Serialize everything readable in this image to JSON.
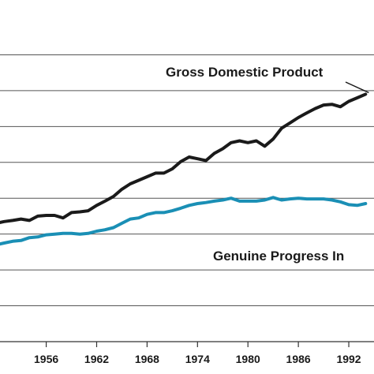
{
  "chart_data": {
    "type": "line",
    "title": "",
    "xlabel": "",
    "ylabel": "",
    "xlim": [
      1950.5,
      1995
    ],
    "ylim": [
      0,
      9
    ],
    "grid": true,
    "x_ticks": [
      {
        "value": 1956,
        "label": "1956"
      },
      {
        "value": 1962,
        "label": "1962"
      },
      {
        "value": 1968,
        "label": "1968"
      },
      {
        "value": 1974,
        "label": "1974"
      },
      {
        "value": 1980,
        "label": "1980"
      },
      {
        "value": 1986,
        "label": "1986"
      },
      {
        "value": 1992,
        "label": "1992"
      }
    ],
    "gridlines_y": [
      1,
      2,
      3,
      4,
      5,
      6,
      7,
      8
    ],
    "series": [
      {
        "name": "Gross Domestic Product",
        "color": "#1a1a1a",
        "x": [
          1950,
          1951,
          1952,
          1953,
          1954,
          1955,
          1956,
          1957,
          1958,
          1959,
          1960,
          1961,
          1962,
          1963,
          1964,
          1965,
          1966,
          1967,
          1968,
          1969,
          1970,
          1971,
          1972,
          1973,
          1974,
          1975,
          1976,
          1977,
          1978,
          1979,
          1980,
          1981,
          1982,
          1983,
          1984,
          1985,
          1986,
          1987,
          1988,
          1989,
          1990,
          1991,
          1992,
          1993,
          1994
        ],
        "y": [
          3.3,
          3.35,
          3.38,
          3.42,
          3.38,
          3.5,
          3.52,
          3.52,
          3.45,
          3.6,
          3.62,
          3.65,
          3.8,
          3.92,
          4.05,
          4.25,
          4.4,
          4.5,
          4.6,
          4.7,
          4.7,
          4.82,
          5.02,
          5.15,
          5.1,
          5.05,
          5.25,
          5.38,
          5.55,
          5.6,
          5.55,
          5.6,
          5.45,
          5.65,
          5.95,
          6.1,
          6.25,
          6.38,
          6.5,
          6.6,
          6.62,
          6.55,
          6.7,
          6.8,
          6.9
        ]
      },
      {
        "name": "Genuine Progress Indicator",
        "color": "#1a8fb5",
        "x": [
          1950,
          1951,
          1952,
          1953,
          1954,
          1955,
          1956,
          1957,
          1958,
          1959,
          1960,
          1961,
          1962,
          1963,
          1964,
          1965,
          1966,
          1967,
          1968,
          1969,
          1970,
          1971,
          1972,
          1973,
          1974,
          1975,
          1976,
          1977,
          1978,
          1979,
          1980,
          1981,
          1982,
          1983,
          1984,
          1985,
          1986,
          1987,
          1988,
          1989,
          1990,
          1991,
          1992,
          1993,
          1994
        ],
        "y": [
          2.7,
          2.75,
          2.8,
          2.82,
          2.9,
          2.92,
          2.98,
          3.0,
          3.02,
          3.02,
          3.0,
          3.02,
          3.08,
          3.12,
          3.18,
          3.3,
          3.42,
          3.45,
          3.55,
          3.6,
          3.6,
          3.65,
          3.72,
          3.8,
          3.85,
          3.88,
          3.92,
          3.95,
          4.0,
          3.92,
          3.92,
          3.92,
          3.95,
          4.02,
          3.95,
          3.98,
          4.0,
          3.98,
          3.98,
          3.98,
          3.95,
          3.9,
          3.82,
          3.8,
          3.85
        ]
      }
    ],
    "annotations": [
      {
        "text": "Gross Domestic Product",
        "series": 0
      },
      {
        "text": "Genuine Progress In",
        "series": 1
      }
    ]
  }
}
